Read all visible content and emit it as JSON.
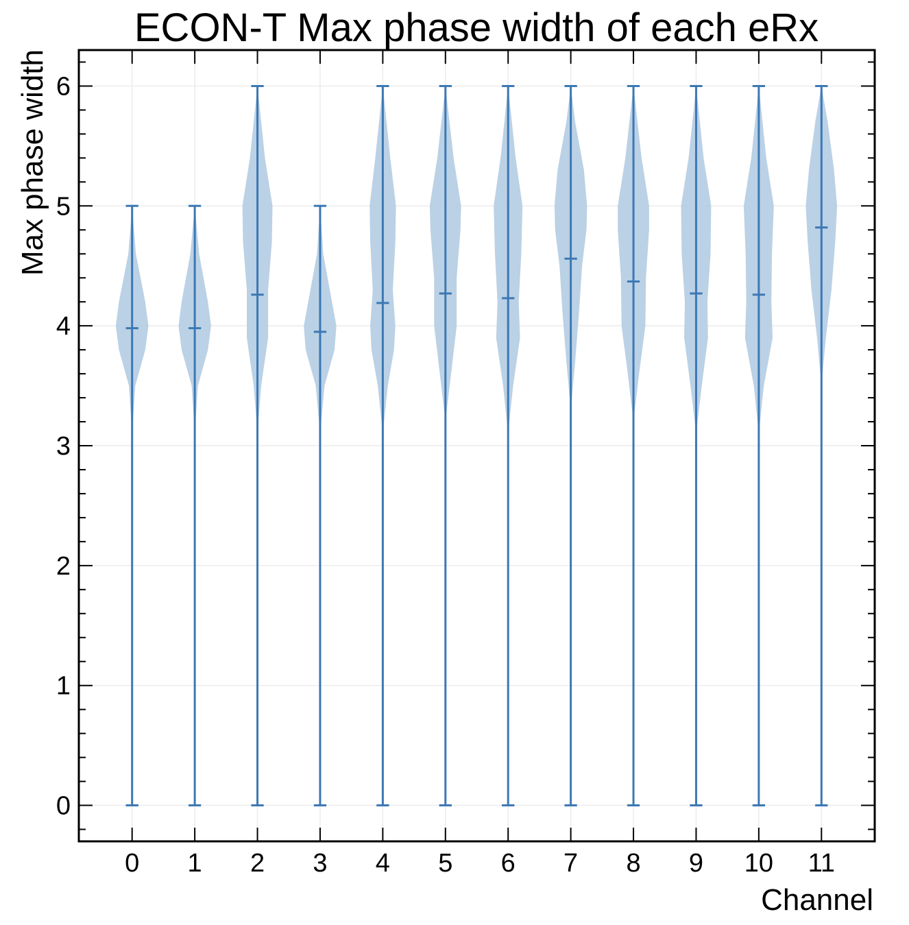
{
  "chart_data": {
    "type": "violin",
    "title": "ECON-T Max phase width of each eRx",
    "xlabel": "Channel",
    "ylabel": "Max phase width",
    "categories": [
      "0",
      "1",
      "2",
      "3",
      "4",
      "5",
      "6",
      "7",
      "8",
      "9",
      "10",
      "11"
    ],
    "x_positions": [
      0,
      1,
      2,
      3,
      4,
      5,
      6,
      7,
      8,
      9,
      10,
      11
    ],
    "ylim": [
      -0.3,
      6.3
    ],
    "xlim": [
      -0.85,
      11.85
    ],
    "yticks": [
      0,
      1,
      2,
      3,
      4,
      5,
      6
    ],
    "ytick_labels": [
      "0",
      "1",
      "2",
      "3",
      "4",
      "5",
      "6"
    ],
    "grid": true,
    "color": "#3c78b4",
    "fill_color": "#b4cce2",
    "violins": [
      {
        "category": "0",
        "min": 0,
        "max": 5,
        "mean": 3.98,
        "density": [
          [
            3.1,
            0.0
          ],
          [
            3.5,
            0.05
          ],
          [
            3.8,
            0.21
          ],
          [
            4.0,
            0.26
          ],
          [
            4.2,
            0.21
          ],
          [
            4.6,
            0.06
          ],
          [
            5.0,
            0.0
          ]
        ]
      },
      {
        "category": "1",
        "min": 0,
        "max": 5,
        "mean": 3.98,
        "density": [
          [
            3.1,
            0.0
          ],
          [
            3.5,
            0.05
          ],
          [
            3.8,
            0.21
          ],
          [
            4.0,
            0.26
          ],
          [
            4.2,
            0.21
          ],
          [
            4.6,
            0.07
          ],
          [
            5.0,
            0.0
          ]
        ]
      },
      {
        "category": "2",
        "min": 0,
        "max": 6,
        "mean": 4.26,
        "density": [
          [
            3.1,
            0.0
          ],
          [
            3.5,
            0.06
          ],
          [
            3.9,
            0.17
          ],
          [
            4.3,
            0.17
          ],
          [
            4.7,
            0.23
          ],
          [
            5.0,
            0.24
          ],
          [
            5.4,
            0.12
          ],
          [
            6.0,
            0.0
          ]
        ]
      },
      {
        "category": "3",
        "min": 0,
        "max": 5,
        "mean": 3.95,
        "density": [
          [
            3.1,
            0.0
          ],
          [
            3.5,
            0.07
          ],
          [
            3.8,
            0.23
          ],
          [
            4.0,
            0.26
          ],
          [
            4.2,
            0.19
          ],
          [
            4.6,
            0.05
          ],
          [
            5.0,
            0.0
          ]
        ]
      },
      {
        "category": "4",
        "min": 0,
        "max": 6,
        "mean": 4.19,
        "density": [
          [
            3.1,
            0.0
          ],
          [
            3.5,
            0.08
          ],
          [
            3.8,
            0.18
          ],
          [
            4.0,
            0.2
          ],
          [
            4.3,
            0.16
          ],
          [
            4.7,
            0.2
          ],
          [
            5.0,
            0.21
          ],
          [
            5.4,
            0.12
          ],
          [
            6.0,
            0.0
          ]
        ]
      },
      {
        "category": "5",
        "min": 0,
        "max": 6,
        "mean": 4.27,
        "density": [
          [
            3.2,
            0.0
          ],
          [
            3.6,
            0.09
          ],
          [
            4.0,
            0.18
          ],
          [
            4.4,
            0.18
          ],
          [
            4.8,
            0.24
          ],
          [
            5.0,
            0.25
          ],
          [
            5.4,
            0.13
          ],
          [
            6.0,
            0.0
          ]
        ]
      },
      {
        "category": "6",
        "min": 0,
        "max": 6,
        "mean": 4.23,
        "density": [
          [
            3.1,
            0.0
          ],
          [
            3.5,
            0.08
          ],
          [
            3.9,
            0.19
          ],
          [
            4.2,
            0.17
          ],
          [
            4.6,
            0.21
          ],
          [
            5.0,
            0.23
          ],
          [
            5.4,
            0.12
          ],
          [
            6.0,
            0.0
          ]
        ]
      },
      {
        "category": "7",
        "min": 0,
        "max": 6,
        "mean": 4.56,
        "density": [
          [
            3.3,
            0.0
          ],
          [
            3.7,
            0.07
          ],
          [
            4.1,
            0.13
          ],
          [
            4.5,
            0.18
          ],
          [
            4.8,
            0.25
          ],
          [
            5.0,
            0.26
          ],
          [
            5.3,
            0.21
          ],
          [
            5.7,
            0.07
          ],
          [
            6.0,
            0.0
          ]
        ]
      },
      {
        "category": "8",
        "min": 0,
        "max": 6,
        "mean": 4.37,
        "density": [
          [
            3.2,
            0.0
          ],
          [
            3.6,
            0.09
          ],
          [
            4.0,
            0.19
          ],
          [
            4.4,
            0.2
          ],
          [
            4.8,
            0.25
          ],
          [
            5.0,
            0.25
          ],
          [
            5.4,
            0.13
          ],
          [
            6.0,
            0.0
          ]
        ]
      },
      {
        "category": "9",
        "min": 0,
        "max": 6,
        "mean": 4.27,
        "density": [
          [
            3.1,
            0.0
          ],
          [
            3.5,
            0.09
          ],
          [
            3.9,
            0.19
          ],
          [
            4.2,
            0.18
          ],
          [
            4.6,
            0.23
          ],
          [
            5.0,
            0.24
          ],
          [
            5.4,
            0.12
          ],
          [
            6.0,
            0.0
          ]
        ]
      },
      {
        "category": "10",
        "min": 0,
        "max": 6,
        "mean": 4.26,
        "density": [
          [
            3.1,
            0.0
          ],
          [
            3.5,
            0.08
          ],
          [
            3.9,
            0.22
          ],
          [
            4.2,
            0.2
          ],
          [
            4.6,
            0.21
          ],
          [
            5.0,
            0.24
          ],
          [
            5.4,
            0.12
          ],
          [
            6.0,
            0.0
          ]
        ]
      },
      {
        "category": "11",
        "min": 0,
        "max": 6,
        "mean": 4.82,
        "density": [
          [
            3.5,
            0.0
          ],
          [
            3.9,
            0.07
          ],
          [
            4.3,
            0.16
          ],
          [
            4.7,
            0.22
          ],
          [
            5.0,
            0.25
          ],
          [
            5.3,
            0.2
          ],
          [
            5.7,
            0.1
          ],
          [
            6.0,
            0.0
          ]
        ]
      }
    ]
  }
}
